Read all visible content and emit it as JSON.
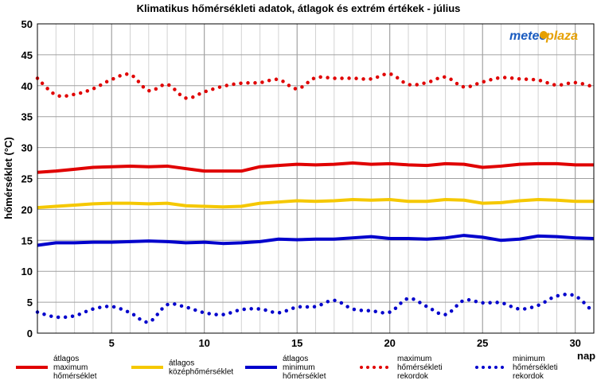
{
  "logo": {
    "part1": "meteo",
    "part2": "plaza"
  },
  "chart_data": {
    "type": "line",
    "title": "Klimatikus hőmérsékleti adatok, átlagok és extrém értékek - július",
    "xlabel": "nap",
    "ylabel": "hőmérséklet (°C)",
    "xlim": [
      1,
      31
    ],
    "ylim": [
      0,
      50
    ],
    "xticks": [
      5,
      10,
      15,
      20,
      25,
      30
    ],
    "yticks": [
      0,
      5,
      10,
      15,
      20,
      25,
      30,
      35,
      40,
      45,
      50
    ],
    "grid": true,
    "legend_position": "bottom",
    "x": [
      1,
      2,
      3,
      4,
      5,
      6,
      7,
      8,
      9,
      10,
      11,
      12,
      13,
      14,
      15,
      16,
      17,
      18,
      19,
      20,
      21,
      22,
      23,
      24,
      25,
      26,
      27,
      28,
      29,
      30,
      31
    ],
    "series": [
      {
        "name": "átlagos maximum hőmérséklet",
        "style": "solid",
        "color": "#e00000",
        "values": [
          26.0,
          26.2,
          26.5,
          26.8,
          26.9,
          27.0,
          26.9,
          27.0,
          26.6,
          26.2,
          26.2,
          26.2,
          26.9,
          27.1,
          27.3,
          27.2,
          27.3,
          27.5,
          27.3,
          27.4,
          27.2,
          27.1,
          27.4,
          27.3,
          26.8,
          27.0,
          27.3,
          27.4,
          27.4,
          27.2,
          27.2
        ]
      },
      {
        "name": "átlagos középhőmérséklet",
        "style": "solid",
        "color": "#f5c800",
        "values": [
          20.3,
          20.5,
          20.7,
          20.9,
          21.0,
          21.0,
          20.9,
          21.0,
          20.6,
          20.5,
          20.4,
          20.5,
          21.0,
          21.2,
          21.4,
          21.3,
          21.4,
          21.6,
          21.5,
          21.6,
          21.3,
          21.3,
          21.6,
          21.5,
          21.0,
          21.1,
          21.4,
          21.6,
          21.5,
          21.3,
          21.3
        ]
      },
      {
        "name": "átlagos minimum hőmérséklet",
        "style": "solid",
        "color": "#0000cc",
        "values": [
          14.2,
          14.6,
          14.6,
          14.7,
          14.7,
          14.8,
          14.9,
          14.8,
          14.6,
          14.7,
          14.5,
          14.6,
          14.8,
          15.2,
          15.1,
          15.2,
          15.2,
          15.4,
          15.6,
          15.3,
          15.3,
          15.2,
          15.4,
          15.8,
          15.5,
          15.0,
          15.2,
          15.7,
          15.6,
          15.4,
          15.3
        ]
      },
      {
        "name": "maximum hőmérsékleti rekordok",
        "style": "dotted",
        "color": "#e00000",
        "values": [
          41.2,
          38.5,
          38.6,
          39.5,
          41.0,
          41.8,
          39.2,
          40.2,
          38.0,
          39.0,
          39.9,
          40.4,
          40.5,
          41.0,
          39.5,
          41.3,
          41.2,
          41.2,
          41.1,
          41.9,
          40.2,
          40.5,
          41.4,
          39.8,
          40.6,
          41.3,
          41.1,
          40.9,
          40.1,
          40.5,
          39.8
        ]
      },
      {
        "name": "minimum hőmérsékleti rekordok",
        "style": "dotted",
        "color": "#0000cc",
        "values": [
          3.4,
          2.6,
          2.8,
          3.9,
          4.3,
          3.3,
          1.8,
          4.6,
          4.2,
          3.3,
          3.0,
          3.8,
          3.9,
          3.3,
          4.2,
          4.3,
          5.3,
          3.9,
          3.6,
          3.4,
          5.6,
          4.3,
          3.0,
          5.3,
          4.9,
          4.9,
          3.9,
          4.5,
          6.0,
          6.0,
          3.3
        ]
      }
    ]
  }
}
